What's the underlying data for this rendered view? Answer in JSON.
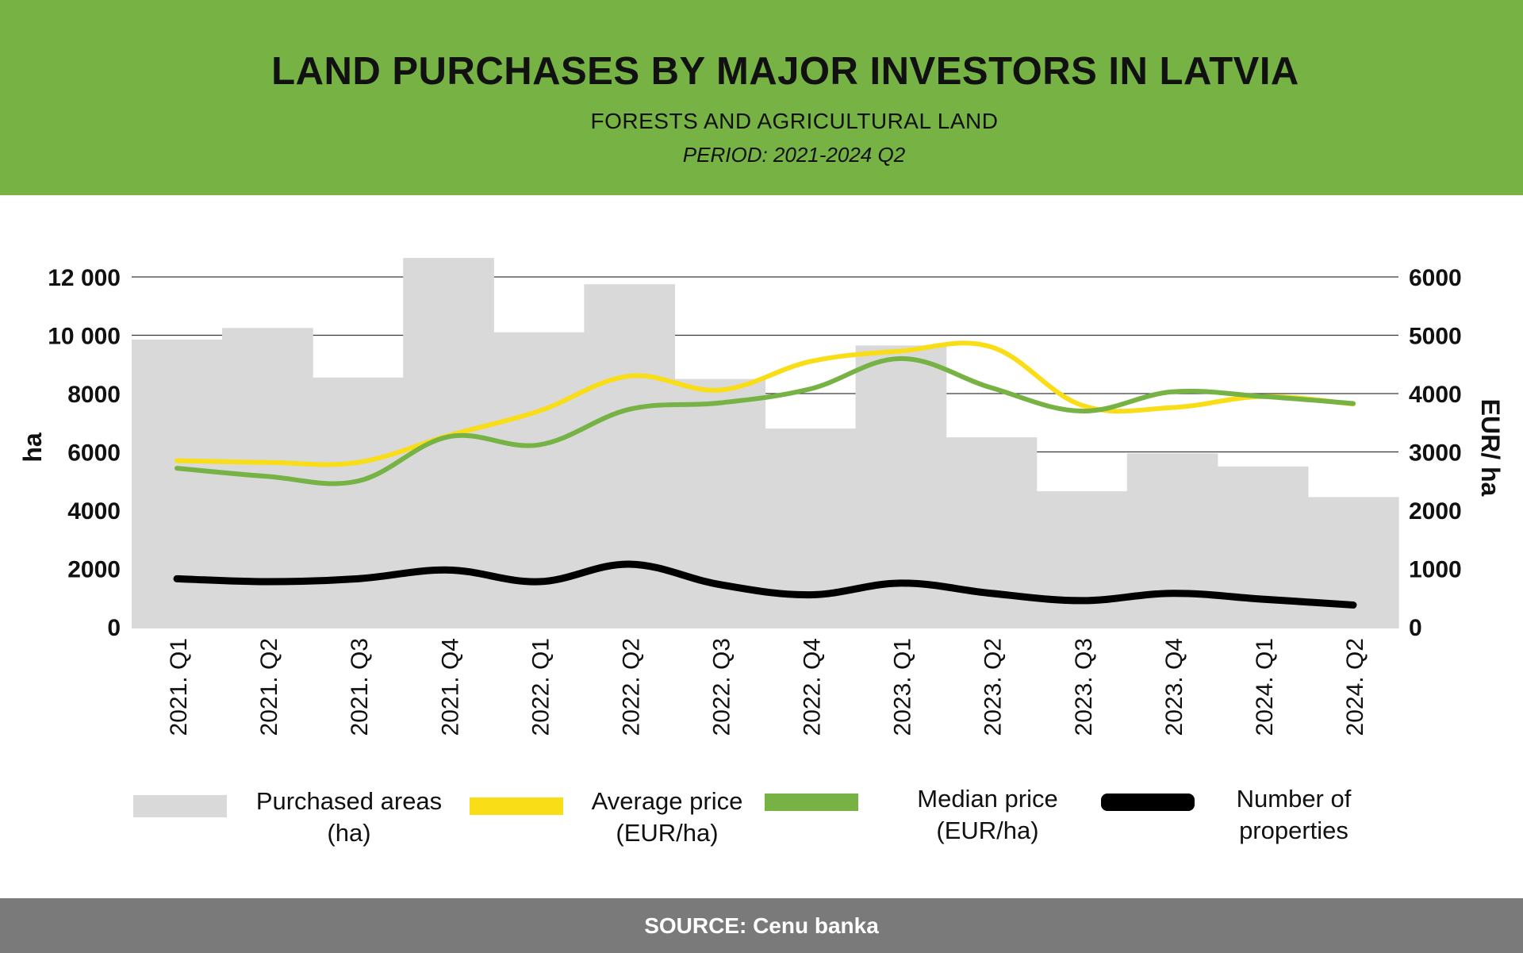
{
  "header": {
    "title": "LAND PURCHASES BY MAJOR INVESTORS IN LATVIA",
    "subtitle": "FORESTS AND AGRICULTURAL LAND",
    "period": "PERIOD: 2021-2024 Q2"
  },
  "footer": {
    "source": "SOURCE: Cenu banka"
  },
  "colors": {
    "header_bg": "#76b244",
    "bars": "#d9d9d9",
    "average": "#f9dd16",
    "median": "#76b244",
    "count": "#000000",
    "footer_bg": "#7a7a7a"
  },
  "legend": [
    {
      "label": "Purchased areas\n(ha)",
      "color": "#d9d9d9"
    },
    {
      "label": "Average price\n(EUR/ha)",
      "color": "#f9dd16"
    },
    {
      "label": "Median price\n(EUR/ha)",
      "color": "#76b244"
    },
    {
      "label": "Number of\nproperties",
      "color": "#000000"
    }
  ],
  "chart_data": {
    "type": "bar",
    "categories": [
      "2021. Q1",
      "2021. Q2",
      "2021. Q3",
      "2021. Q4",
      "2022. Q1",
      "2022. Q2",
      "2022. Q3",
      "2022. Q4",
      "2023. Q1",
      "2023. Q2",
      "2023. Q3",
      "2023. Q4",
      "2024. Q1",
      "2024. Q2"
    ],
    "ylabel": "ha",
    "y2label": "EUR/ ha",
    "ylim": [
      0,
      12000
    ],
    "y2lim": [
      0,
      6000
    ],
    "yticks": [
      "0",
      "2000",
      "4000",
      "6000",
      "8000",
      "10 000",
      "12 000"
    ],
    "y2ticks": [
      "0",
      "1000",
      "2000",
      "3000",
      "4000",
      "5000",
      "6000"
    ],
    "grid": true,
    "legend_position": "bottom",
    "series": [
      {
        "name": "Purchased areas (ha)",
        "type": "bar",
        "axis": "left",
        "values": [
          9850,
          10250,
          8550,
          12650,
          10100,
          11750,
          8500,
          6800,
          9650,
          6500,
          4650,
          5950,
          5500,
          4450
        ]
      },
      {
        "name": "Average price (EUR/ha)",
        "type": "line",
        "axis": "right",
        "values": [
          2850,
          2820,
          2820,
          3280,
          3700,
          4300,
          4060,
          4550,
          4730,
          4800,
          3800,
          3760,
          3950,
          3820
        ]
      },
      {
        "name": "Median price (EUR/ha)",
        "type": "line",
        "axis": "right",
        "values": [
          2720,
          2580,
          2500,
          3260,
          3120,
          3730,
          3840,
          4080,
          4600,
          4100,
          3700,
          4030,
          3950,
          3830
        ]
      },
      {
        "name": "Number of properties",
        "type": "line",
        "axis": "left",
        "values": [
          1650,
          1550,
          1650,
          1950,
          1550,
          2150,
          1450,
          1100,
          1500,
          1150,
          900,
          1150,
          950,
          750
        ]
      }
    ]
  }
}
